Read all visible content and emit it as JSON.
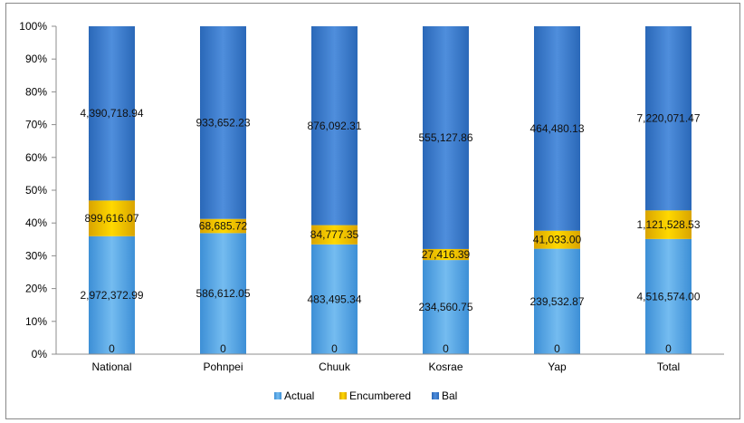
{
  "chart_data": {
    "type": "bar",
    "stacked": "percent",
    "categories": [
      "National",
      "Pohnpei",
      "Chuuk",
      "Kosrae",
      "Yap",
      "Total"
    ],
    "series": [
      {
        "name": "Actual",
        "color": "#5aaae6",
        "values": [
          2972372.99,
          586612.05,
          483495.34,
          234560.75,
          239532.87,
          4516574.0
        ],
        "labels": [
          "2,972,372.99",
          "586,612.05",
          "483,495.34",
          "234,560.75",
          "239,532.87",
          "4,516,574.00"
        ]
      },
      {
        "name": "Encumbered",
        "color": "#f5c400",
        "values": [
          899616.07,
          68685.72,
          84777.35,
          27416.39,
          41033.0,
          1121528.53
        ],
        "labels": [
          "899,616.07",
          "68,685.72",
          "84,777.35",
          "27,416.39",
          "41,033.00",
          "1,121,528.53"
        ]
      },
      {
        "name": "Bal",
        "color": "#3f7fd0",
        "values": [
          4390718.94,
          933652.23,
          876092.31,
          555127.86,
          464480.13,
          7220071.47
        ],
        "labels": [
          "4,390,718.94",
          "933,652.23",
          "876,092.31",
          "555,127.86",
          "464,480.13",
          "7,220,071.47"
        ]
      }
    ],
    "base_labels": [
      "0",
      "0",
      "0",
      "0",
      "0",
      "0"
    ],
    "y_ticks": [
      "0%",
      "10%",
      "20%",
      "30%",
      "40%",
      "50%",
      "60%",
      "70%",
      "80%",
      "90%",
      "100%"
    ],
    "ylim": [
      0,
      100
    ],
    "grid": false,
    "legend_position": "bottom"
  }
}
